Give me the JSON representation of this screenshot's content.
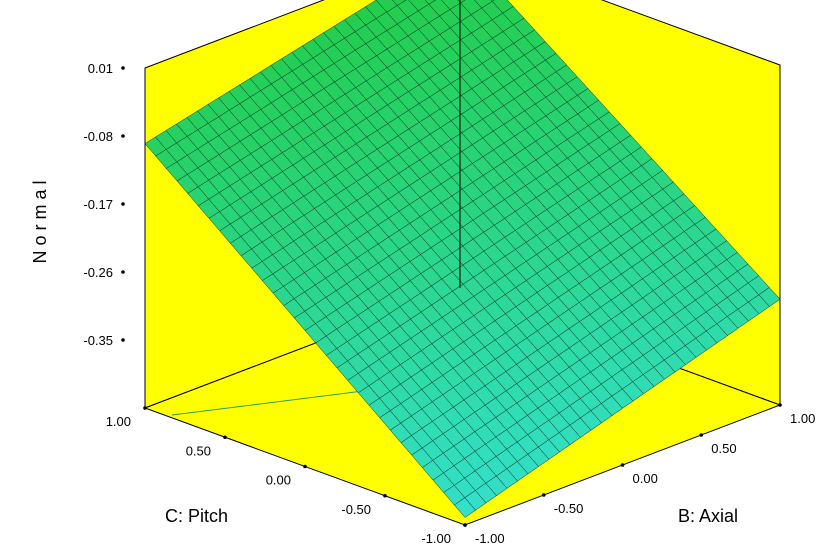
{
  "chart_data": {
    "type": "surface",
    "zlabel": "N o r m a l",
    "xlabel": "C: Pitch",
    "ylabel": "B: Axial",
    "z_ticks": [
      "0.01",
      "-0.08",
      "-0.17",
      "-0.26",
      "-0.35"
    ],
    "c_ticks": [
      "1.00",
      "0.50",
      "0.00",
      "-0.50",
      "-1.00"
    ],
    "b_ticks": [
      "-1.00",
      "-0.50",
      "0.00",
      "0.50",
      "1.00"
    ],
    "zlim": [
      -0.44,
      0.01
    ],
    "c_range": [
      -1.0,
      1.0
    ],
    "b_range": [
      -1.0,
      1.0
    ],
    "corners": [
      {
        "c": 1.0,
        "b": 1.0,
        "z": 0.01
      },
      {
        "c": 1.0,
        "b": -1.0,
        "z": -0.09
      },
      {
        "c": -1.0,
        "b": -1.0,
        "z": -0.43
      },
      {
        "c": -1.0,
        "b": 1.0,
        "z": -0.3
      }
    ],
    "grid_divisions": 30,
    "colors": {
      "walls": "#ffff00",
      "surface_high": "#22cc44",
      "surface_low": "#33e0cc",
      "mesh": "#003322",
      "contour": "#2a9d5c"
    }
  }
}
